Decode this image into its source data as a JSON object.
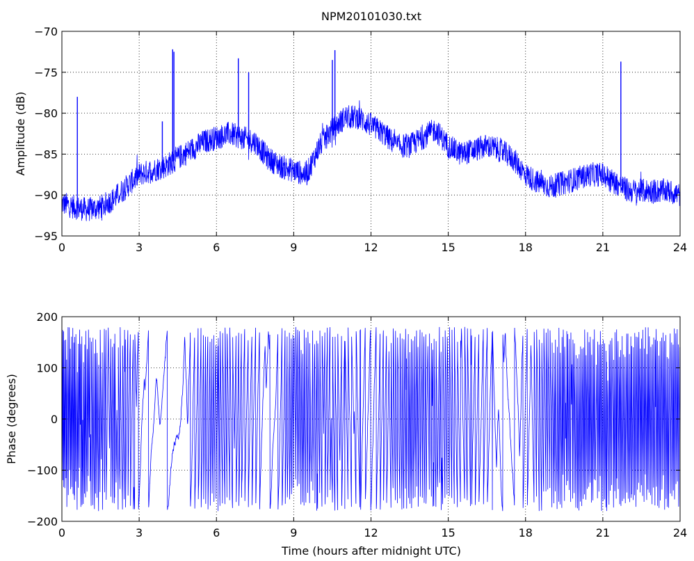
{
  "title": "NPM20101030.txt",
  "colors": {
    "line": "#0000ff",
    "axes": "#000000",
    "grid": "#000000",
    "background": "#ffffff"
  },
  "chart_data": [
    {
      "type": "line",
      "title": "NPM20101030.txt",
      "xlabel": "",
      "ylabel": "Amplitude (dB)",
      "xlim": [
        0,
        24
      ],
      "ylim": [
        -95,
        -70
      ],
      "xticks": [
        0,
        3,
        6,
        9,
        12,
        15,
        18,
        21,
        24
      ],
      "yticks": [
        -95,
        -90,
        -85,
        -80,
        -75,
        -70
      ],
      "xtick_labels": [
        "0",
        "3",
        "6",
        "9",
        "12",
        "15",
        "18",
        "21",
        "24"
      ],
      "ytick_labels": [
        "−95",
        "−90",
        "−85",
        "−80",
        "−75",
        "−70"
      ],
      "grid": true,
      "trend": {
        "x": [
          0,
          0.5,
          1,
          1.5,
          2,
          2.5,
          3,
          3.5,
          4,
          4.5,
          5,
          5.5,
          6,
          6.5,
          7,
          7.5,
          8,
          8.5,
          9,
          9.5,
          10,
          10.5,
          11,
          11.5,
          12,
          12.5,
          13,
          13.5,
          14,
          14.5,
          15,
          15.5,
          16,
          16.5,
          17,
          17.5,
          18,
          18.5,
          19,
          19.5,
          20,
          20.5,
          21,
          21.5,
          22,
          22.5,
          23,
          23.5,
          24
        ],
        "y": [
          -91,
          -91.5,
          -91.8,
          -91.5,
          -90.5,
          -89,
          -87.5,
          -87,
          -86.5,
          -85.5,
          -84.5,
          -83.5,
          -83,
          -82.5,
          -83,
          -83.5,
          -85.5,
          -86.5,
          -87,
          -87.5,
          -84,
          -82,
          -80.5,
          -80.5,
          -81.5,
          -82.5,
          -84,
          -84,
          -83,
          -82,
          -84,
          -85,
          -84.5,
          -84,
          -84.5,
          -85.5,
          -87.5,
          -88.5,
          -89,
          -88.5,
          -88,
          -87.5,
          -87.5,
          -88.5,
          -89.5,
          -89.5,
          -89.5,
          -89.5,
          -90
        ]
      },
      "noise_amplitude_db": 1.5,
      "spikes": [
        {
          "x": 0.6,
          "y": -78
        },
        {
          "x": 3.9,
          "y": -81
        },
        {
          "x": 4.3,
          "y": -72.2
        },
        {
          "x": 4.35,
          "y": -72.5
        },
        {
          "x": 6.85,
          "y": -73.3
        },
        {
          "x": 7.25,
          "y": -75
        },
        {
          "x": 10.5,
          "y": -73.5
        },
        {
          "x": 10.6,
          "y": -72.3
        },
        {
          "x": 21.7,
          "y": -73.7
        }
      ]
    },
    {
      "type": "line",
      "title": "",
      "xlabel": "Time (hours after midnight UTC)",
      "ylabel": "Phase (degrees)",
      "xlim": [
        0,
        24
      ],
      "ylim": [
        -200,
        200
      ],
      "xticks": [
        0,
        3,
        6,
        9,
        12,
        15,
        18,
        21,
        24
      ],
      "yticks": [
        -200,
        -100,
        0,
        100,
        200
      ],
      "xtick_labels": [
        "0",
        "3",
        "6",
        "9",
        "12",
        "15",
        "18",
        "21",
        "24"
      ],
      "ytick_labels": [
        "−200",
        "−100",
        "0",
        "100",
        "200"
      ],
      "grid": true,
      "wrap_range": [
        -180,
        180
      ],
      "phase_rate_deg_per_hour": [
        {
          "x": 0,
          "rate": 9000
        },
        {
          "x": 2.5,
          "rate": 4000
        },
        {
          "x": 3.2,
          "rate": 900
        },
        {
          "x": 4.5,
          "rate": 350
        },
        {
          "x": 5.8,
          "rate": 5000
        },
        {
          "x": 8.3,
          "rate": 900
        },
        {
          "x": 9.0,
          "rate": 6000
        },
        {
          "x": 12.0,
          "rate": 1500
        },
        {
          "x": 13.5,
          "rate": 6000
        },
        {
          "x": 17.5,
          "rate": 700
        },
        {
          "x": 19.5,
          "rate": 6500
        },
        {
          "x": 24,
          "rate": 6500
        }
      ]
    }
  ]
}
